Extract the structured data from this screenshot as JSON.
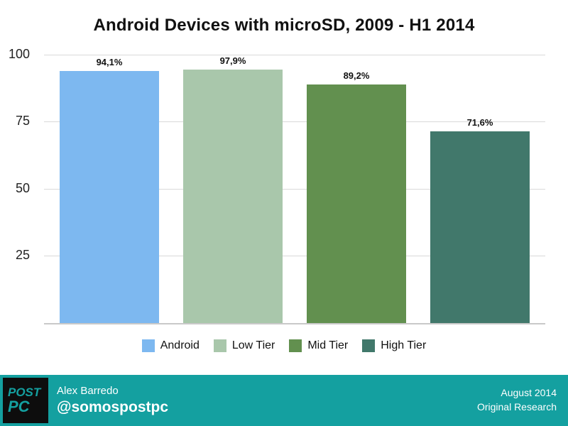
{
  "title": "Android Devices with microSD, 2009 - H1 2014",
  "chart_data": {
    "type": "bar",
    "categories": [
      "Android",
      "Low Tier",
      "Mid Tier",
      "High Tier"
    ],
    "values": [
      94.1,
      97.9,
      89.2,
      71.6
    ],
    "value_labels": [
      "94,1%",
      "97,9%",
      "89,2%",
      "71,6%"
    ],
    "colors": [
      "#7DB8F0",
      "#A9C7AB",
      "#62904F",
      "#41786B"
    ],
    "yticks": [
      25,
      50,
      75,
      100
    ],
    "ylim": [
      0,
      100
    ],
    "xlabel": "",
    "ylabel": "",
    "grid": true,
    "legend_position": "bottom"
  },
  "footer": {
    "background": "#14A0A0",
    "logo_line1": "POST",
    "logo_line2": "PC",
    "author_name": "Alex Barredo",
    "author_handle": "@somospostpc",
    "right_line1": "August 2014",
    "right_line2": "Original Research"
  }
}
